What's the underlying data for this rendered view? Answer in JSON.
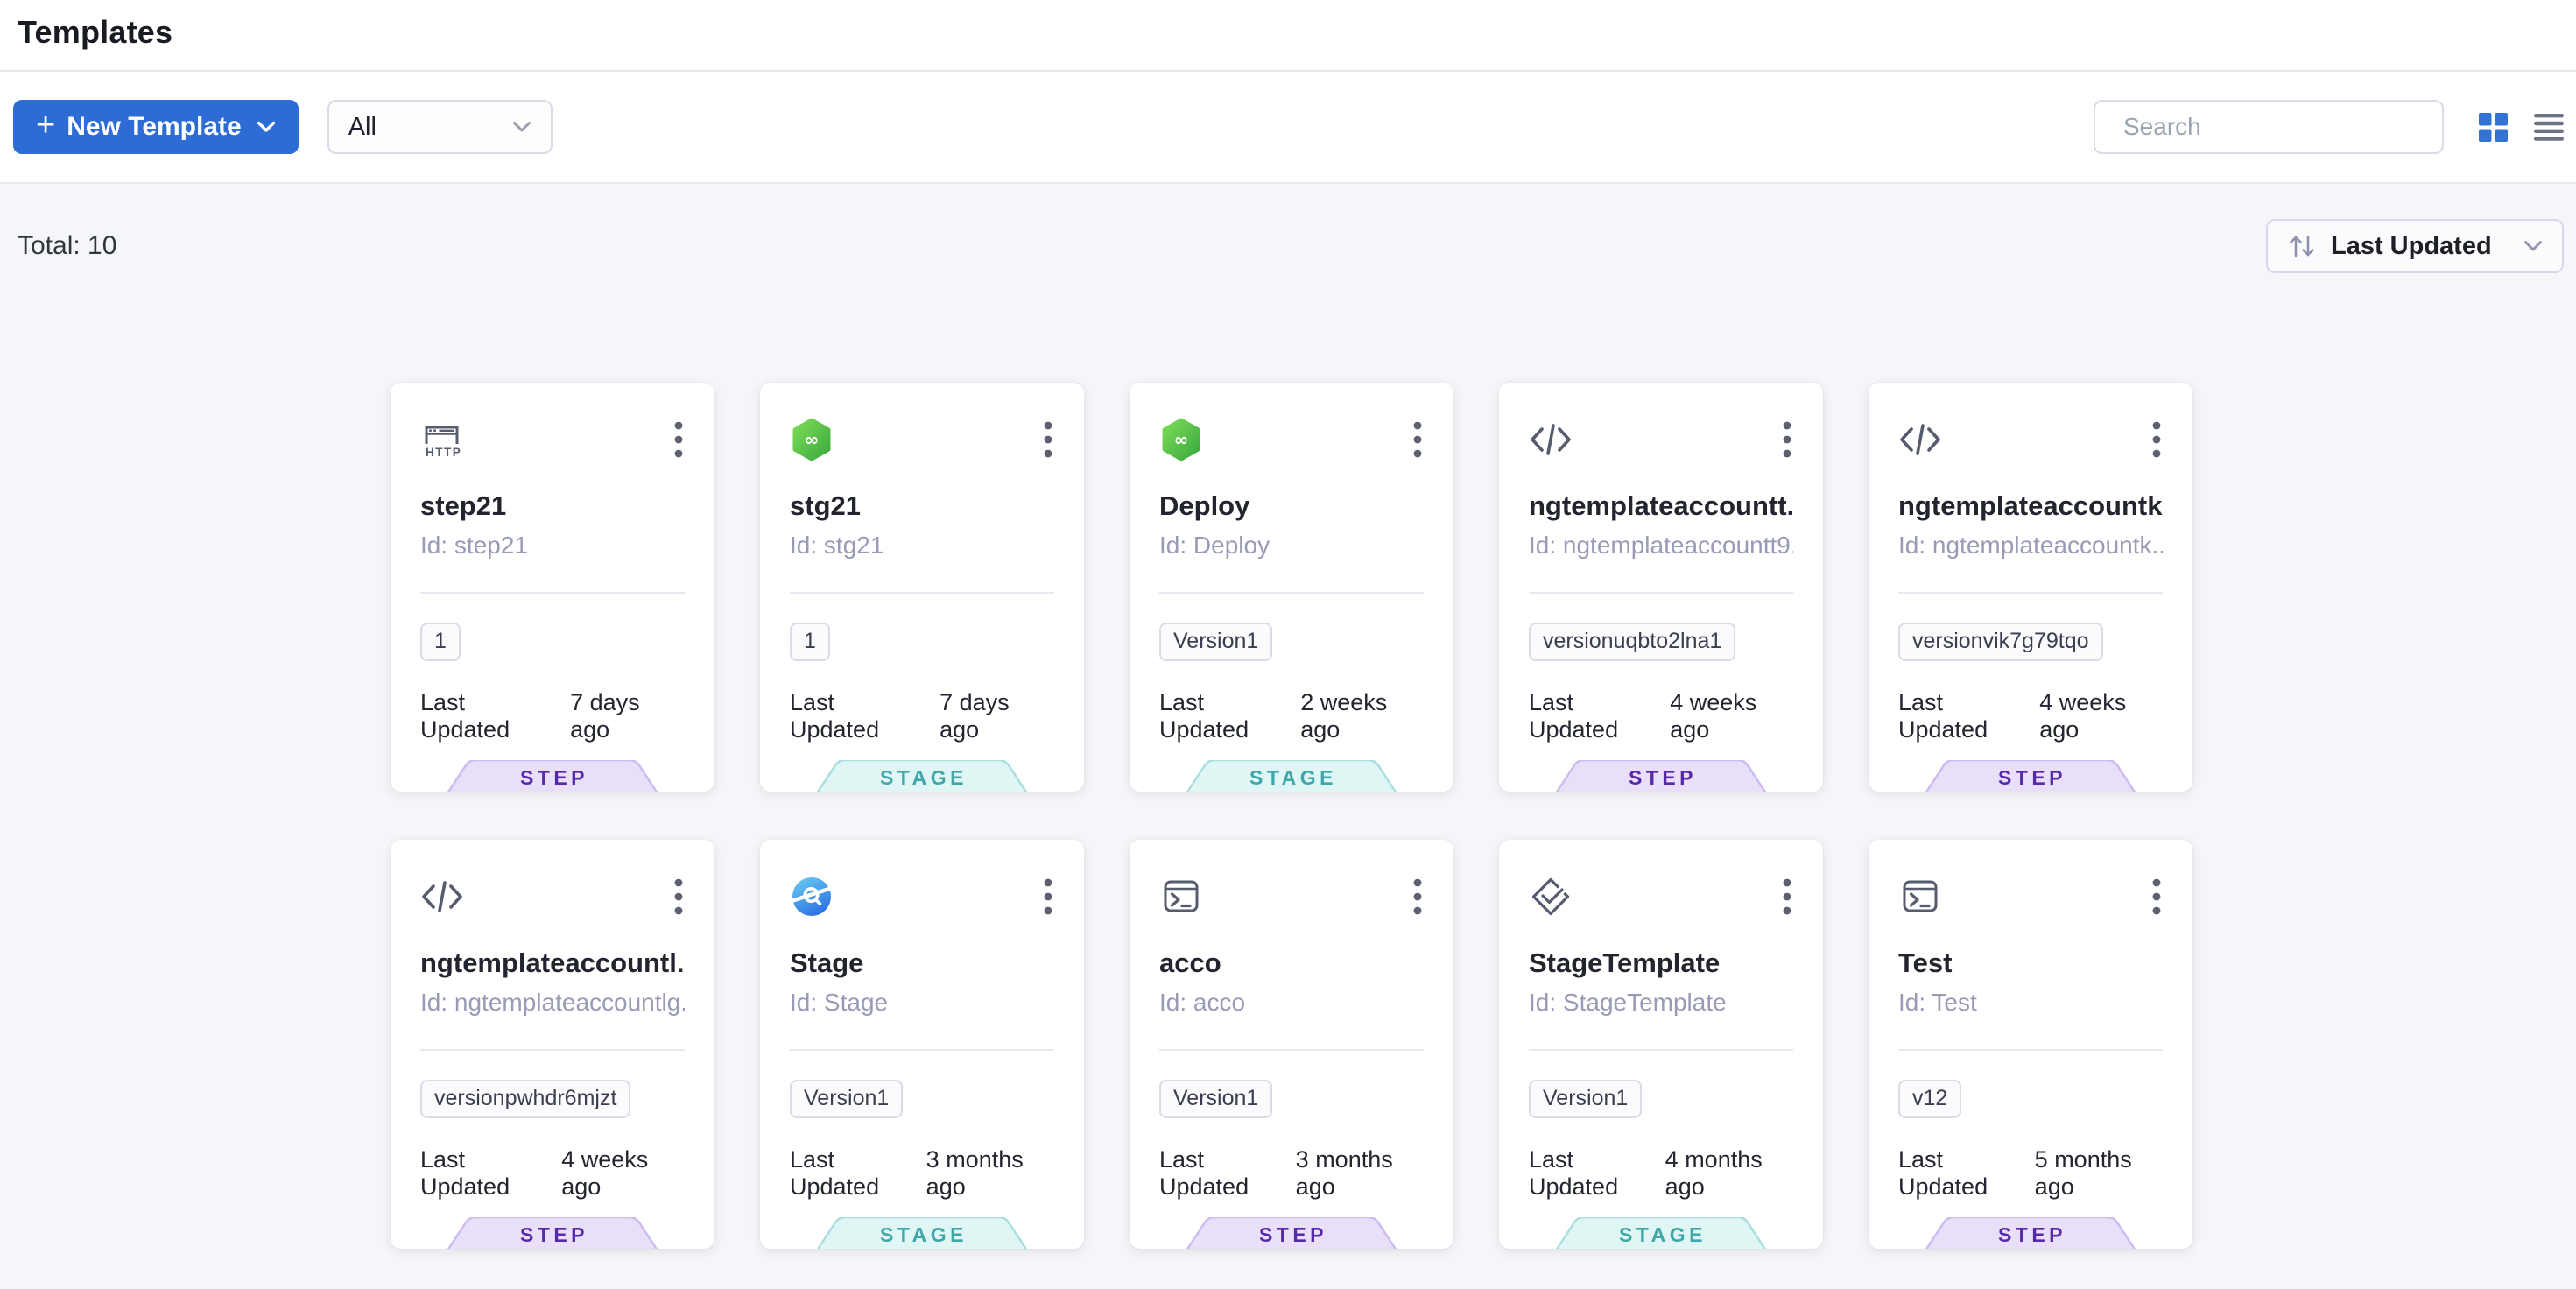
{
  "page": {
    "title": "Templates"
  },
  "toolbar": {
    "new_template_label": "New Template",
    "filter_value": "All",
    "search_placeholder": "Search"
  },
  "summary": {
    "total": "Total: 10"
  },
  "sort": {
    "label": "Last Updated"
  },
  "colors": {
    "primary_blue": "#2e6cd5",
    "step_text": "#5629ab",
    "step_bg": "#e9dff9",
    "stage_text": "#3fa7a9",
    "stage_bg": "#dff6f5",
    "icon_slate": "#575b6e"
  },
  "cards_common": {
    "updated_label": "Last Updated"
  },
  "cards": [
    {
      "name": "step21",
      "id_label": "Id: step21",
      "icon": "http-icon",
      "version": "1",
      "updated": "7 days ago",
      "type": "STEP"
    },
    {
      "name": "stg21",
      "id_label": "Id: stg21",
      "icon": "cd-icon",
      "version": "1",
      "updated": "7 days ago",
      "type": "STAGE"
    },
    {
      "name": "Deploy",
      "id_label": "Id: Deploy",
      "icon": "cd-icon",
      "version": "Version1",
      "updated": "2 weeks ago",
      "type": "STAGE"
    },
    {
      "name": "ngtemplateaccountt...",
      "id_label": "Id: ngtemplateaccountt9...",
      "icon": "code-icon",
      "version": "versionuqbto2lna1",
      "updated": "4 weeks ago",
      "type": "STEP"
    },
    {
      "name": "ngtemplateaccountk...",
      "id_label": "Id: ngtemplateaccountk...",
      "icon": "code-icon",
      "version": "versionvik7g79tqo",
      "updated": "4 weeks ago",
      "type": "STEP"
    },
    {
      "name": "ngtemplateaccountl...",
      "id_label": "Id: ngtemplateaccountlg...",
      "icon": "code-icon",
      "version": "versionpwhdr6mjzt",
      "updated": "4 weeks ago",
      "type": "STEP"
    },
    {
      "name": "Stage",
      "id_label": "Id: Stage",
      "icon": "verify-icon",
      "version": "Version1",
      "updated": "3 months ago",
      "type": "STAGE"
    },
    {
      "name": "acco",
      "id_label": "Id: acco",
      "icon": "terminal-icon",
      "version": "Version1",
      "updated": "3 months ago",
      "type": "STEP"
    },
    {
      "name": "StageTemplate",
      "id_label": "Id: StageTemplate",
      "icon": "diamond-check-icon",
      "version": "Version1",
      "updated": "4 months ago",
      "type": "STAGE"
    },
    {
      "name": "Test",
      "id_label": "Id: Test",
      "icon": "terminal-icon",
      "version": "v12",
      "updated": "5 months ago",
      "type": "STEP"
    }
  ]
}
